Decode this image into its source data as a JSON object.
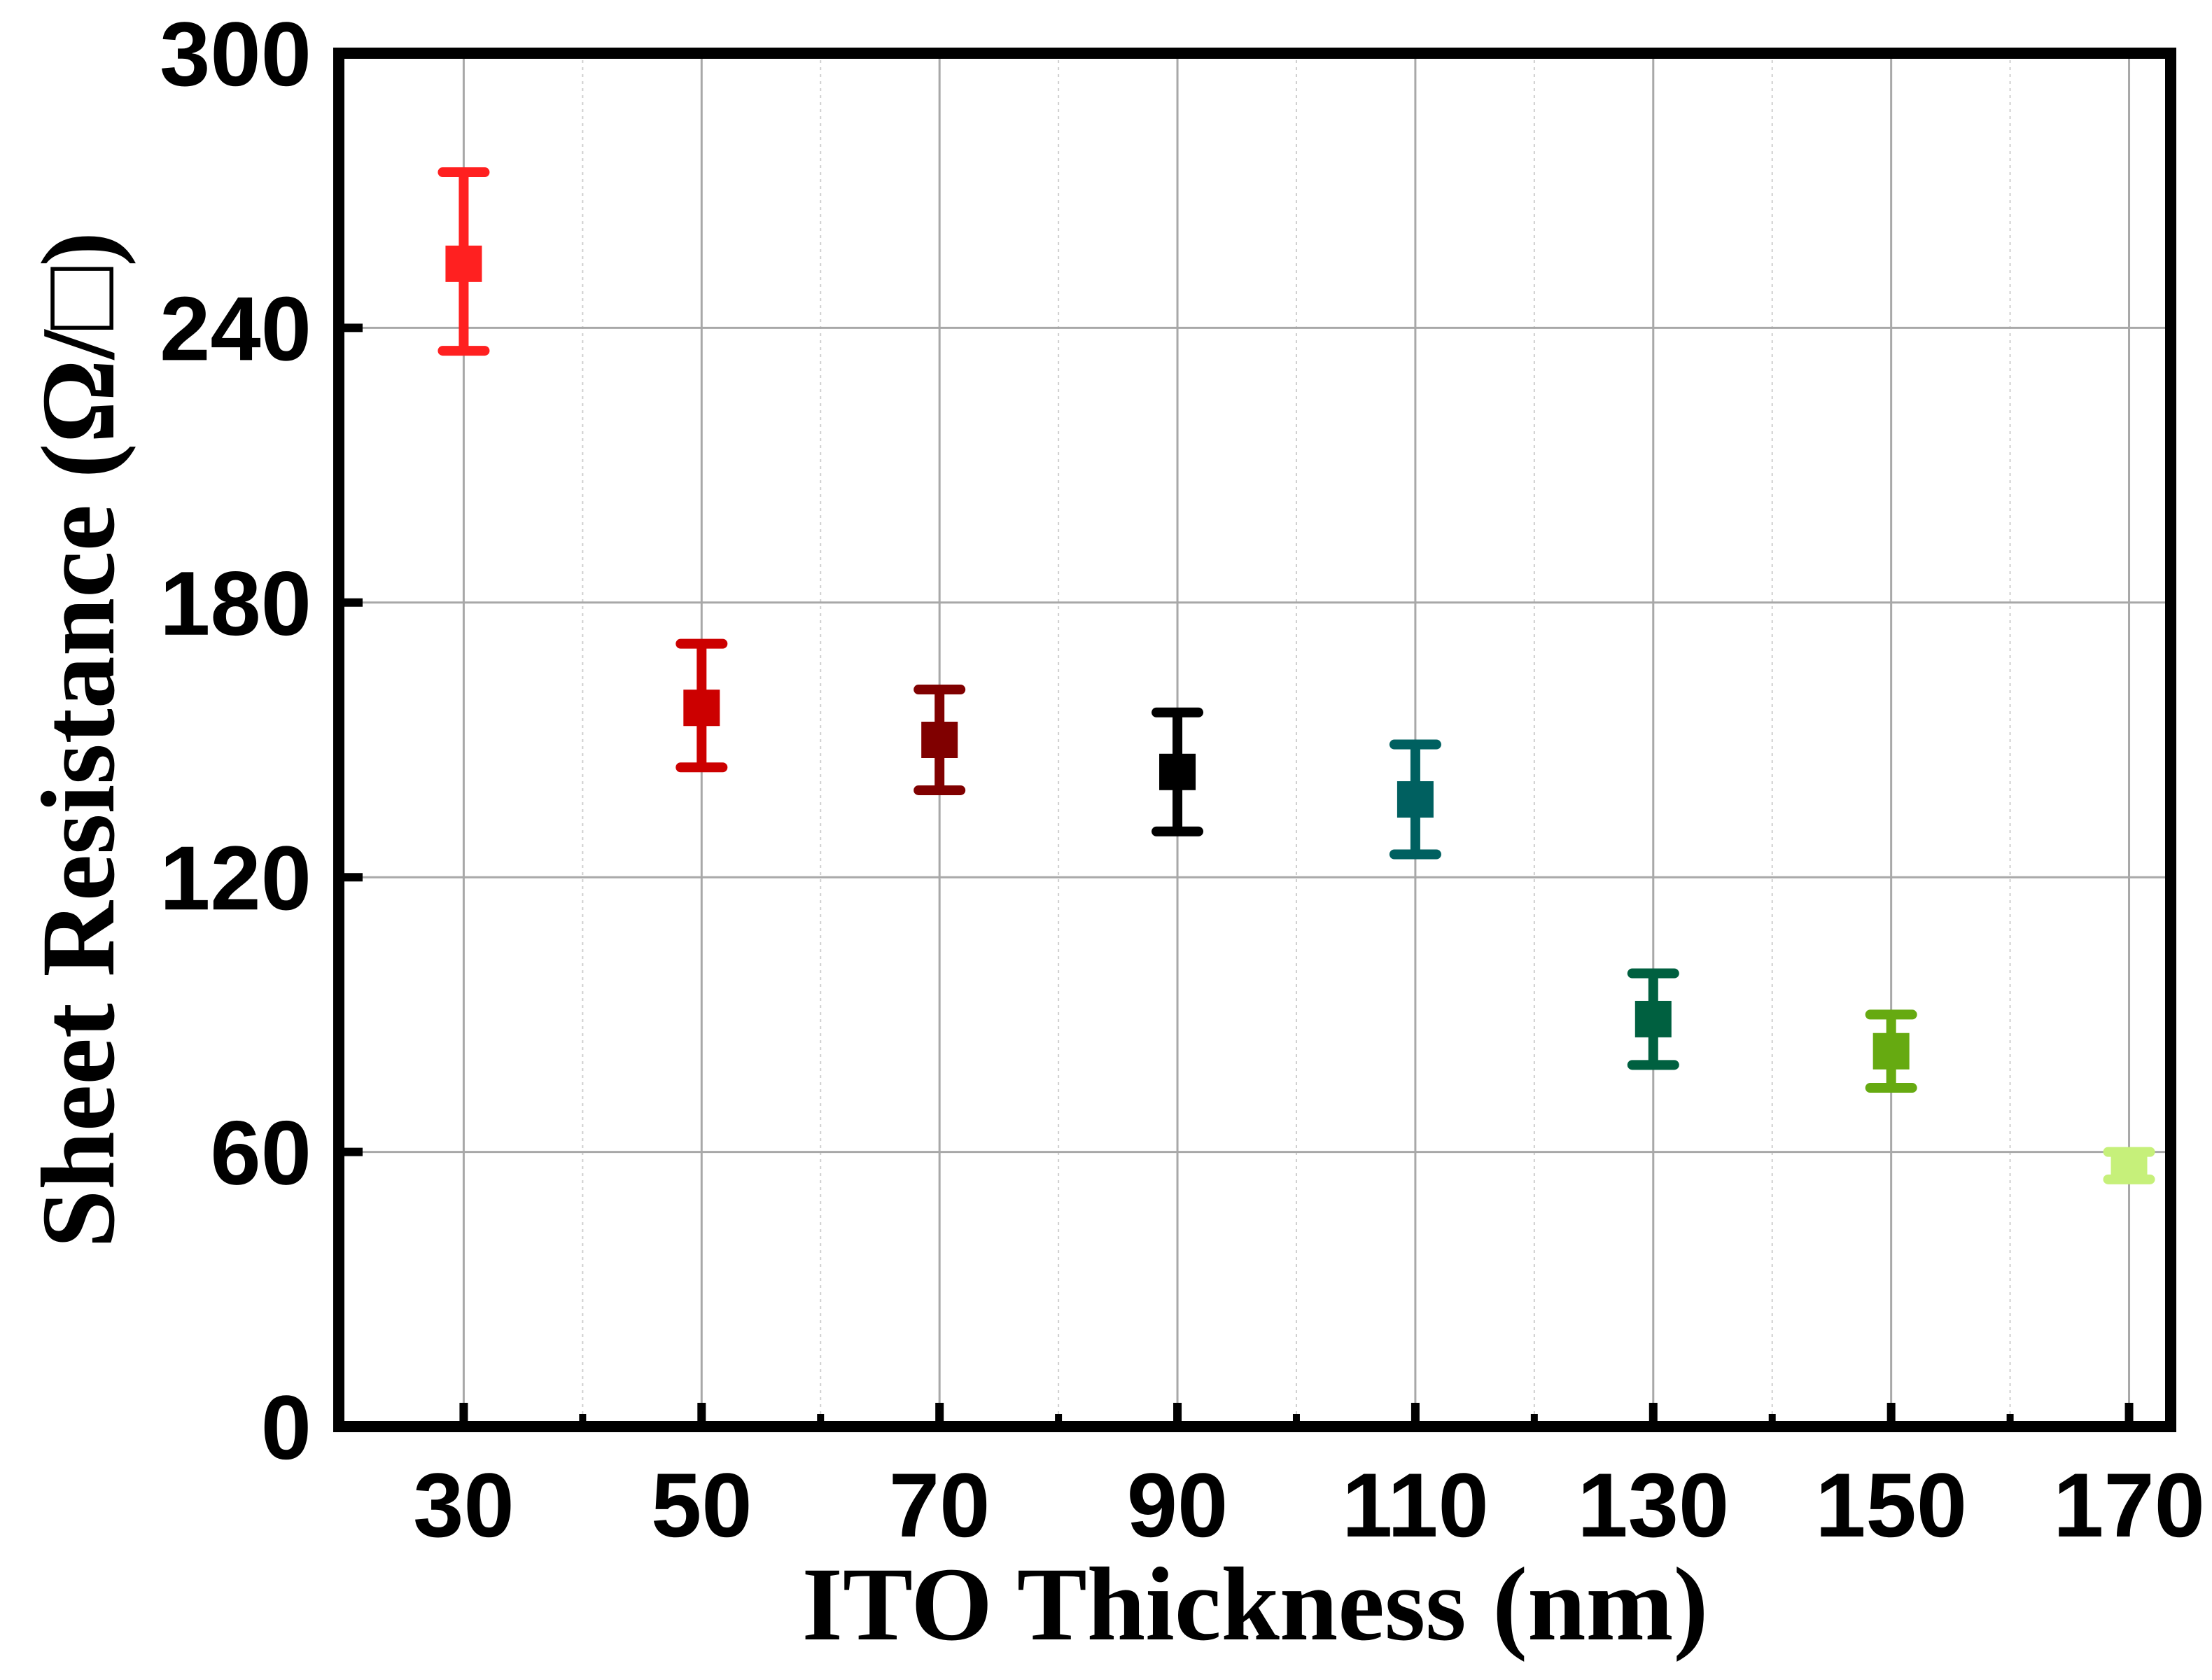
{
  "chart_data": {
    "type": "scatter",
    "title": "",
    "xlabel": "ITO Thickness (nm)",
    "ylabel": "Sheet Resistance (Ω/□)",
    "xlim": [
      19.5,
      173.5
    ],
    "ylim": [
      0,
      300
    ],
    "x_ticks": [
      30,
      50,
      70,
      90,
      110,
      130,
      150,
      170
    ],
    "x_tick_labels": [
      "30",
      "50",
      "70",
      "90",
      "110",
      "130",
      "150",
      "170"
    ],
    "x_minor_ticks": [
      40,
      60,
      80,
      100,
      120,
      140,
      160
    ],
    "y_ticks": [
      0,
      60,
      120,
      180,
      240,
      300
    ],
    "y_tick_labels": [
      "0",
      "60",
      "120",
      "180",
      "240",
      "300"
    ],
    "grid": true,
    "legend": "none",
    "points": [
      {
        "x": 30,
        "y": 254,
        "err_low": 235,
        "err_high": 274,
        "color": "#ff2020"
      },
      {
        "x": 50,
        "y": 157,
        "err_low": 144,
        "err_high": 171,
        "color": "#cc0000"
      },
      {
        "x": 70,
        "y": 150,
        "err_low": 139,
        "err_high": 161,
        "color": "#800000"
      },
      {
        "x": 90,
        "y": 143,
        "err_low": 130,
        "err_high": 156,
        "color": "#000000"
      },
      {
        "x": 110,
        "y": 137,
        "err_low": 125,
        "err_high": 149,
        "color": "#006060"
      },
      {
        "x": 130,
        "y": 89,
        "err_low": 79,
        "err_high": 99,
        "color": "#006040"
      },
      {
        "x": 150,
        "y": 82,
        "err_low": 74,
        "err_high": 90,
        "color": "#66aa11"
      },
      {
        "x": 170,
        "y": 57,
        "err_low": 54,
        "err_high": 60,
        "color": "#c6f07a"
      }
    ]
  }
}
